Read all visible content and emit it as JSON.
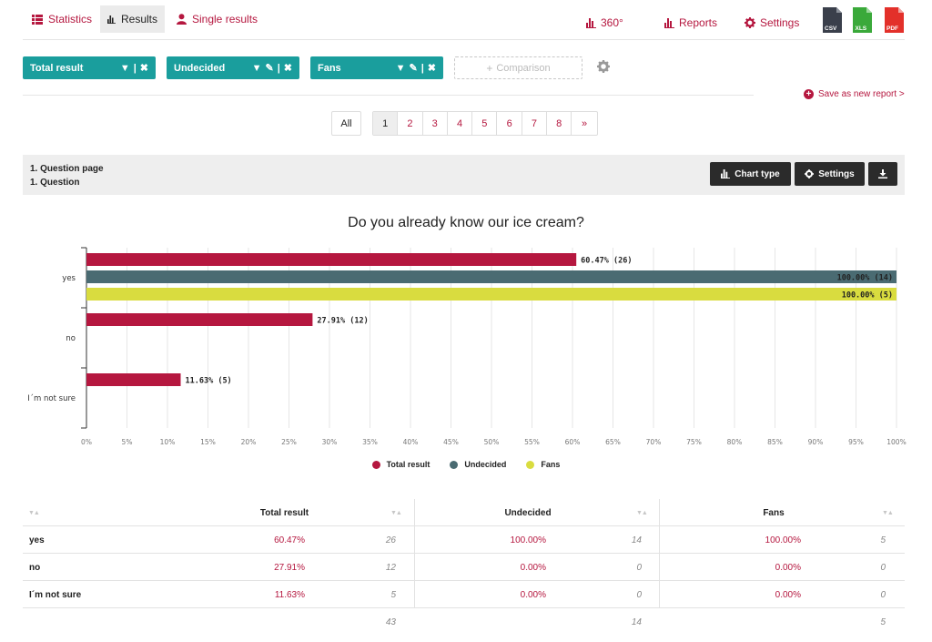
{
  "nav": {
    "tabs": [
      {
        "label": "Statistics",
        "icon": "list-icon"
      },
      {
        "label": "Results",
        "icon": "bar-chart-icon"
      },
      {
        "label": "Single results",
        "icon": "user-icon"
      }
    ],
    "right": [
      {
        "label": "360°",
        "icon": "bar-chart-icon"
      },
      {
        "label": "Reports",
        "icon": "bar-chart-icon"
      },
      {
        "label": "Settings",
        "icon": "gear-icon"
      }
    ],
    "exports": [
      {
        "label": "CSV",
        "color": "#3a3f4b"
      },
      {
        "label": "XLS",
        "color": "#3aa93a"
      },
      {
        "label": "PDF",
        "color": "#e3302a"
      }
    ]
  },
  "filters": {
    "items": [
      {
        "label": "Total result"
      },
      {
        "label": "Undecided"
      },
      {
        "label": "Fans"
      }
    ],
    "comparison_label": "Comparison",
    "save_label": "Save as new report >"
  },
  "pagination": {
    "all_label": "All",
    "pages": [
      "1",
      "2",
      "3",
      "4",
      "5",
      "6",
      "7",
      "8",
      "»"
    ],
    "current": "1"
  },
  "question": {
    "page": "1. Question page",
    "name": "1. Question",
    "chart_type_label": "Chart type",
    "settings_label": "Settings"
  },
  "chart_data": {
    "type": "bar",
    "orientation": "horizontal",
    "title": "Do you already know our ice cream?",
    "categories": [
      "yes",
      "no",
      "I´m not sure"
    ],
    "series": [
      {
        "name": "Total result",
        "color": "#b5173f",
        "values": [
          60.47,
          27.91,
          11.63
        ],
        "counts": [
          26,
          12,
          5
        ]
      },
      {
        "name": "Undecided",
        "color": "#4a6b72",
        "values": [
          100.0,
          null,
          null
        ],
        "counts": [
          14,
          null,
          null
        ]
      },
      {
        "name": "Fans",
        "color": "#d9dc3f",
        "values": [
          100.0,
          null,
          null
        ],
        "counts": [
          5,
          null,
          null
        ]
      }
    ],
    "data_labels": [
      [
        "60.47% (26)",
        "27.91% (12)",
        "11.63% (5)"
      ],
      [
        "100.00% (14)",
        "",
        ""
      ],
      [
        "100.00% (5)",
        "",
        ""
      ]
    ],
    "xlim": [
      0,
      100
    ],
    "xticks": [
      "0%",
      "5%",
      "10%",
      "15%",
      "20%",
      "25%",
      "30%",
      "35%",
      "40%",
      "45%",
      "50%",
      "55%",
      "60%",
      "65%",
      "70%",
      "75%",
      "80%",
      "85%",
      "90%",
      "95%",
      "100%"
    ],
    "grid": true,
    "legend": "bottom"
  },
  "table": {
    "headers": [
      "Total result",
      "Undecided",
      "Fans"
    ],
    "rows": [
      {
        "label": "yes",
        "cells": [
          [
            "60.47%",
            "26"
          ],
          [
            "100.00%",
            "14"
          ],
          [
            "100.00%",
            "5"
          ]
        ]
      },
      {
        "label": "no",
        "cells": [
          [
            "27.91%",
            "12"
          ],
          [
            "0.00%",
            "0"
          ],
          [
            "0.00%",
            "0"
          ]
        ]
      },
      {
        "label": "I´m not sure",
        "cells": [
          [
            "11.63%",
            "5"
          ],
          [
            "0.00%",
            "0"
          ],
          [
            "0.00%",
            "0"
          ]
        ]
      }
    ],
    "totals": [
      "43",
      "14",
      "5"
    ]
  }
}
